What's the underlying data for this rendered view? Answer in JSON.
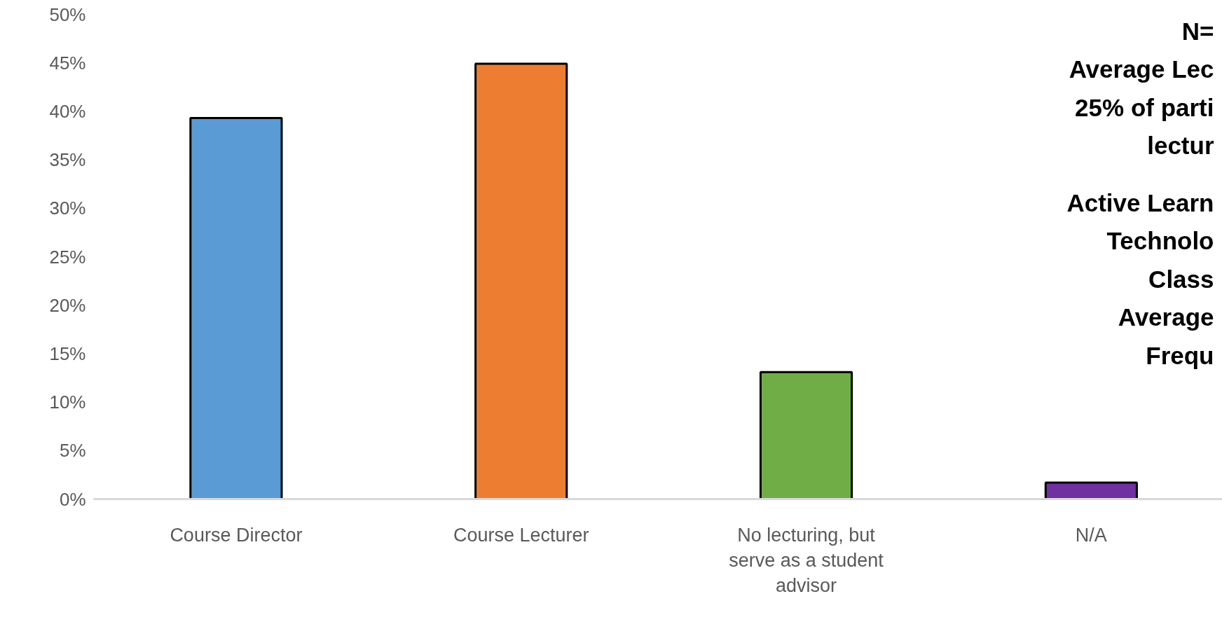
{
  "chart_data": {
    "type": "bar",
    "categories": [
      "Course Director",
      "Course Lecturer",
      "No lecturing, but serve as a student advisor",
      "N/A"
    ],
    "values": [
      39.3,
      44.9,
      13.1,
      1.7
    ],
    "colors": [
      "#5b9bd5",
      "#ed7d31",
      "#70ad47",
      "#7030a0"
    ],
    "ylim": [
      0,
      50
    ],
    "yticks": [
      {
        "value": 0,
        "label": "0%"
      },
      {
        "value": 5,
        "label": "5%"
      },
      {
        "value": 10,
        "label": "10%"
      },
      {
        "value": 15,
        "label": "15%"
      },
      {
        "value": 20,
        "label": "20%"
      },
      {
        "value": 25,
        "label": "25%"
      },
      {
        "value": 30,
        "label": "30%"
      },
      {
        "value": 35,
        "label": "35%"
      },
      {
        "value": 40,
        "label": "40%"
      },
      {
        "value": 45,
        "label": "45%"
      },
      {
        "value": 50,
        "label": "50%"
      }
    ],
    "annotations": [
      "N=\nAverage Lec\n25% of parti\nlectur",
      "Active Learn\nTechnolo\nClass\nAverage\nFrequ"
    ]
  }
}
